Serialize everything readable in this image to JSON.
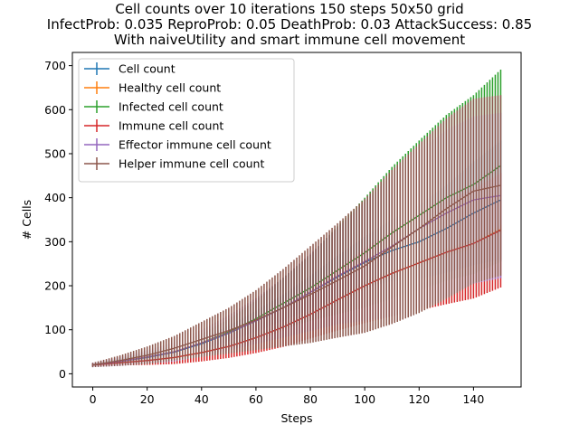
{
  "chart_data": {
    "type": "line",
    "title_lines": [
      "Cell counts over 10 iterations 150 steps 50x50 grid",
      "InfectProb: 0.035 ReproProb: 0.05 DeathProb: 0.03 AttackSuccess: 0.85",
      "With naiveUtility and smart immune cell movement"
    ],
    "xlabel": "Steps",
    "ylabel": "# Cells",
    "xlim": [
      -7.5,
      157.5
    ],
    "ylim": [
      -30,
      730
    ],
    "x_ticks": [
      0,
      20,
      40,
      60,
      80,
      100,
      120,
      140
    ],
    "y_ticks": [
      0,
      100,
      200,
      300,
      400,
      500,
      600,
      700
    ],
    "grid": false,
    "legend_position": "upper-left",
    "error_bars": "vertical, one per step",
    "x": [
      0,
      10,
      20,
      30,
      40,
      50,
      60,
      70,
      80,
      90,
      100,
      110,
      120,
      130,
      140,
      150
    ],
    "series": [
      {
        "name": "Cell count",
        "color": "#1f77b4",
        "values": [
          20,
          28,
          37,
          49,
          68,
          92,
          120,
          150,
          185,
          220,
          253,
          280,
          300,
          330,
          365,
          395
        ],
        "errors": [
          3,
          5,
          7,
          10,
          14,
          18,
          24,
          30,
          38,
          48,
          58,
          70,
          85,
          100,
          118,
          135
        ]
      },
      {
        "name": "Healthy cell count",
        "color": "#ff7f0e",
        "values": [
          20,
          25,
          30,
          37,
          48,
          62,
          82,
          106,
          135,
          168,
          200,
          228,
          252,
          276,
          296,
          328
        ],
        "errors": [
          1,
          2,
          3,
          4,
          5,
          6,
          7,
          8,
          8,
          9,
          9,
          10,
          10,
          10,
          10,
          10
        ]
      },
      {
        "name": "Infected cell count",
        "color": "#2ca02c",
        "values": [
          20,
          28,
          38,
          50,
          70,
          95,
          125,
          160,
          195,
          235,
          275,
          320,
          360,
          400,
          430,
          473
        ],
        "errors": [
          3,
          6,
          10,
          15,
          22,
          30,
          42,
          58,
          75,
          100,
          125,
          150,
          170,
          188,
          203,
          218
        ]
      },
      {
        "name": "Immune cell count",
        "color": "#d62728",
        "values": [
          20,
          25,
          30,
          37,
          48,
          62,
          82,
          106,
          135,
          168,
          200,
          228,
          252,
          276,
          296,
          326
        ],
        "errors": [
          3,
          6,
          10,
          15,
          20,
          26,
          35,
          45,
          55,
          70,
          85,
          98,
          108,
          118,
          125,
          130
        ]
      },
      {
        "name": "Effector immune cell count",
        "color": "#9467bd",
        "values": [
          20,
          28,
          38,
          50,
          70,
          93,
          120,
          150,
          185,
          222,
          255,
          290,
          330,
          365,
          395,
          405
        ],
        "errors": [
          5,
          10,
          15,
          22,
          30,
          40,
          52,
          68,
          88,
          110,
          135,
          160,
          180,
          190,
          190,
          188
        ]
      },
      {
        "name": "Helper immune cell count",
        "color": "#8c564b",
        "values": [
          20,
          30,
          42,
          58,
          78,
          98,
          122,
          150,
          180,
          212,
          245,
          288,
          330,
          375,
          415,
          428
        ],
        "errors": [
          5,
          12,
          20,
          28,
          40,
          52,
          68,
          88,
          110,
          130,
          152,
          175,
          192,
          205,
          210,
          205
        ]
      }
    ]
  }
}
